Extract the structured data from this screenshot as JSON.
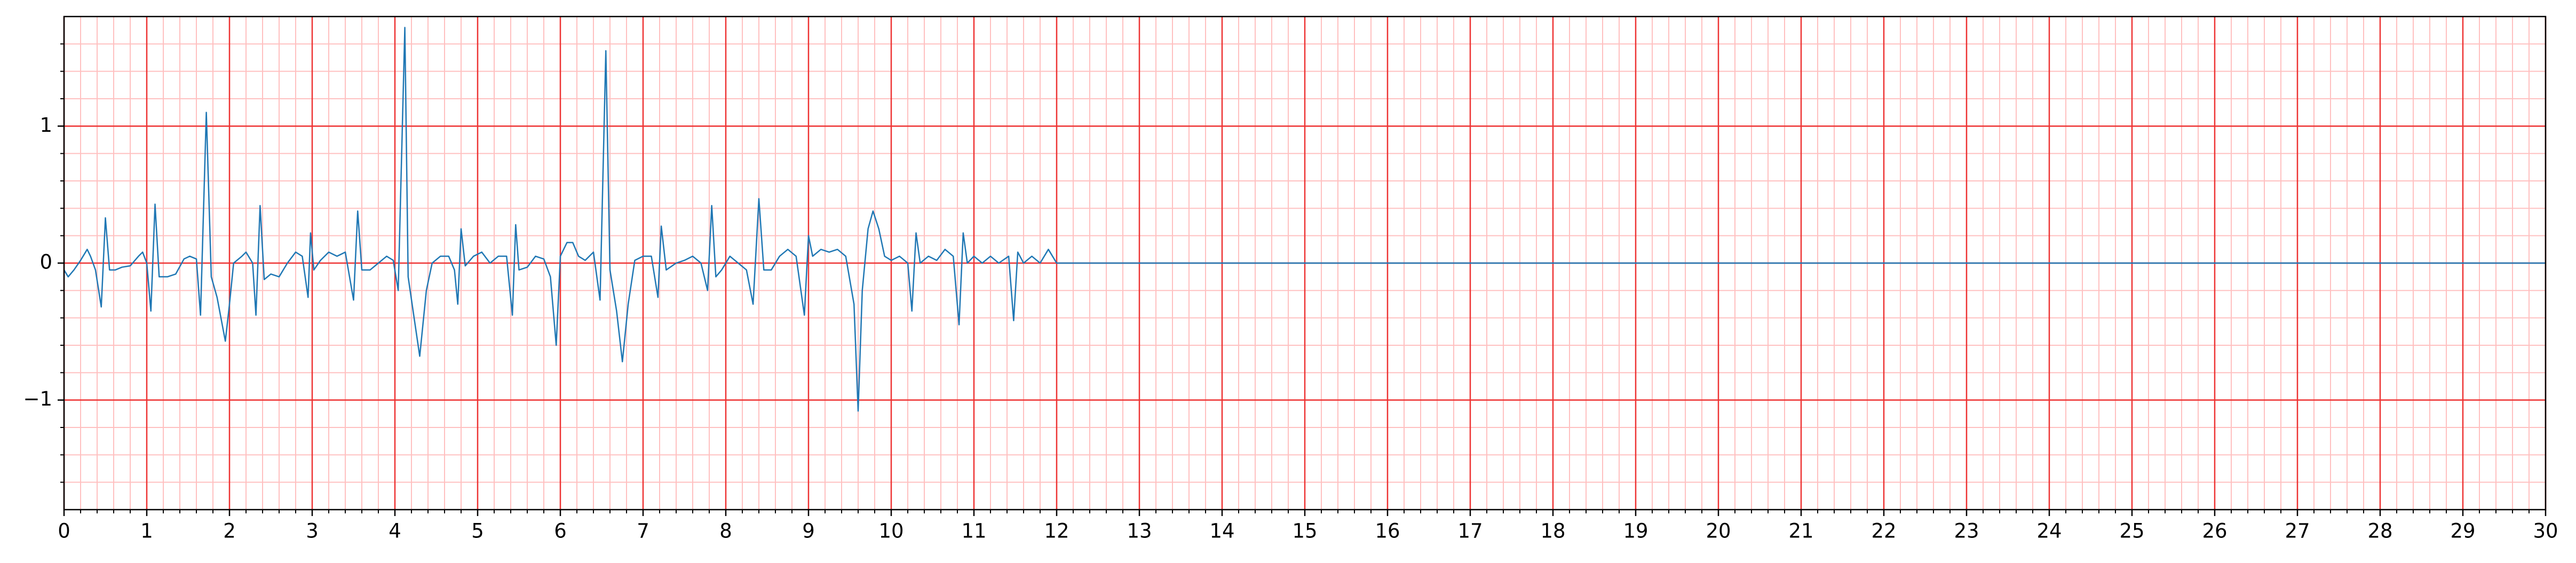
{
  "chart_data": {
    "type": "line",
    "color": "#1f77b4",
    "grid": true,
    "minor_grid": true,
    "xlim": [
      0,
      30
    ],
    "ylim": [
      -1.8,
      1.8
    ],
    "xticks": [
      0,
      1,
      2,
      3,
      4,
      5,
      6,
      7,
      8,
      9,
      10,
      11,
      12,
      13,
      14,
      15,
      16,
      17,
      18,
      19,
      20,
      21,
      22,
      23,
      24,
      25,
      26,
      27,
      28,
      29,
      30
    ],
    "yticks": [
      {
        "value": -1,
        "label": "−1"
      },
      0,
      1
    ],
    "x": [
      0,
      0.05,
      0.12,
      0.2,
      0.28,
      0.32,
      0.38,
      0.45,
      0.5,
      0.55,
      0.62,
      0.7,
      0.8,
      0.9,
      0.95,
      1.0,
      1.05,
      1.1,
      1.15,
      1.25,
      1.35,
      1.45,
      1.52,
      1.6,
      1.65,
      1.72,
      1.78,
      1.85,
      1.95,
      2.0,
      2.05,
      2.15,
      2.2,
      2.28,
      2.32,
      2.37,
      2.42,
      2.5,
      2.6,
      2.7,
      2.8,
      2.88,
      2.95,
      2.98,
      3.02,
      3.1,
      3.2,
      3.3,
      3.4,
      3.5,
      3.55,
      3.6,
      3.7,
      3.8,
      3.9,
      3.98,
      4.04,
      4.12,
      4.16,
      4.22,
      4.3,
      4.38,
      4.45,
      4.55,
      4.65,
      4.72,
      4.76,
      4.8,
      4.85,
      4.95,
      5.05,
      5.15,
      5.25,
      5.35,
      5.42,
      5.46,
      5.5,
      5.6,
      5.7,
      5.8,
      5.88,
      5.95,
      6.0,
      6.08,
      6.15,
      6.22,
      6.3,
      6.4,
      6.48,
      6.55,
      6.6,
      6.68,
      6.75,
      6.82,
      6.9,
      7.0,
      7.1,
      7.18,
      7.22,
      7.28,
      7.4,
      7.5,
      7.6,
      7.7,
      7.78,
      7.83,
      7.88,
      7.95,
      8.05,
      8.15,
      8.25,
      8.33,
      8.4,
      8.46,
      8.55,
      8.65,
      8.75,
      8.85,
      8.95,
      9.0,
      9.05,
      9.15,
      9.25,
      9.35,
      9.45,
      9.55,
      9.6,
      9.65,
      9.72,
      9.78,
      9.85,
      9.92,
      10.0,
      10.1,
      10.2,
      10.25,
      10.3,
      10.35,
      10.45,
      10.55,
      10.65,
      10.75,
      10.82,
      10.87,
      10.92,
      11.0,
      11.1,
      11.2,
      11.3,
      11.42,
      11.48,
      11.53,
      11.6,
      11.7,
      11.8,
      11.9,
      11.95,
      12.0,
      30
    ],
    "values": [
      -0.05,
      -0.1,
      -0.05,
      0.02,
      0.1,
      0.05,
      -0.05,
      -0.32,
      0.33,
      -0.05,
      -0.05,
      -0.03,
      -0.02,
      0.05,
      0.08,
      0.0,
      -0.35,
      0.43,
      -0.1,
      -0.1,
      -0.08,
      0.03,
      0.05,
      0.03,
      -0.38,
      1.1,
      -0.1,
      -0.25,
      -0.57,
      -0.3,
      0.0,
      0.05,
      0.08,
      0.0,
      -0.38,
      0.42,
      -0.12,
      -0.08,
      -0.1,
      0.0,
      0.08,
      0.05,
      -0.25,
      0.22,
      -0.05,
      0.02,
      0.08,
      0.05,
      0.08,
      -0.27,
      0.38,
      -0.05,
      -0.05,
      0.0,
      0.05,
      0.02,
      -0.2,
      1.72,
      -0.1,
      -0.35,
      -0.68,
      -0.2,
      0.0,
      0.05,
      0.05,
      -0.05,
      -0.3,
      0.25,
      -0.02,
      0.05,
      0.08,
      0.0,
      0.05,
      0.05,
      -0.38,
      0.28,
      -0.05,
      -0.03,
      0.05,
      0.03,
      -0.1,
      -0.6,
      0.05,
      0.15,
      0.15,
      0.05,
      0.02,
      0.08,
      -0.27,
      1.55,
      -0.05,
      -0.35,
      -0.72,
      -0.3,
      0.02,
      0.05,
      0.05,
      -0.25,
      0.27,
      -0.05,
      0.0,
      0.02,
      0.05,
      0.0,
      -0.2,
      0.42,
      -0.1,
      -0.05,
      0.05,
      0.0,
      -0.05,
      -0.3,
      0.47,
      -0.05,
      -0.05,
      0.05,
      0.1,
      0.05,
      -0.38,
      0.2,
      0.05,
      0.1,
      0.08,
      0.1,
      0.05,
      -0.3,
      -1.08,
      -0.2,
      0.25,
      0.38,
      0.25,
      0.05,
      0.02,
      0.05,
      0.0,
      -0.35,
      0.22,
      0.0,
      0.05,
      0.02,
      0.1,
      0.05,
      -0.45,
      0.22,
      0.0,
      0.05,
      0.0,
      0.05,
      0.0,
      0.05,
      -0.42,
      0.08,
      0.0,
      0.05,
      0.0,
      0.1,
      0.05,
      0.0,
      0
    ]
  }
}
